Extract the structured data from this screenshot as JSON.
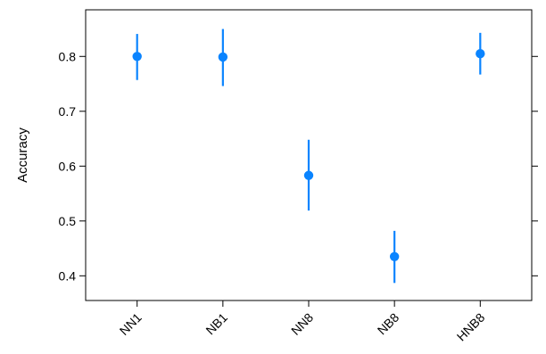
{
  "chart_data": {
    "type": "scatter",
    "subtype": "point-with-error-bars",
    "title": "",
    "xlabel": "",
    "ylabel": "Accuracy",
    "categories": [
      "NN1",
      "NB1",
      "NN8",
      "NB8",
      "HNB8"
    ],
    "series": [
      {
        "color": "#0a84ff",
        "values": [
          0.8,
          0.799,
          0.583,
          0.435,
          0.805
        ],
        "lower": [
          0.757,
          0.746,
          0.519,
          0.387,
          0.767
        ],
        "upper": [
          0.841,
          0.85,
          0.648,
          0.482,
          0.843
        ]
      }
    ],
    "y_ticks": [
      0.4,
      0.5,
      0.6,
      0.7,
      0.8
    ],
    "y_tick_labels": [
      "0.4",
      "0.5",
      "0.6",
      "0.7",
      "0.8"
    ],
    "ylim": [
      0.355,
      0.885
    ],
    "grid": false,
    "legend": "none",
    "right_ticks": true
  }
}
